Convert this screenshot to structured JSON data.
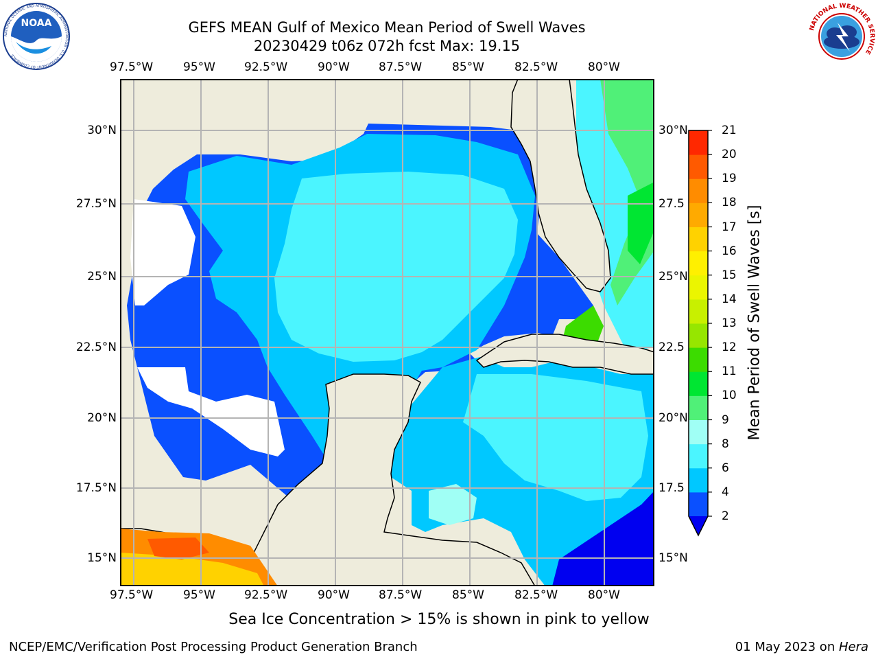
{
  "header": {
    "title_line1": "GEFS MEAN Gulf of Mexico Mean Period of Swell Waves",
    "title_line2": "20230429 t06z 072h fcst   Max: 19.15"
  },
  "logos": {
    "noaa_text": "NOAA",
    "noaa_ring_text": "NATIONAL OCEANIC AND ATMOSPHERIC ADMINISTRATION · U.S. DEPARTMENT OF COMMERCE",
    "nws_ring_text": "NATIONAL WEATHER SERVICE"
  },
  "map": {
    "lon_labels": [
      "97.5°W",
      "95°W",
      "92.5°W",
      "90°W",
      "87.5°W",
      "85°W",
      "82.5°W",
      "80°W"
    ],
    "lat_labels_left": [
      "30°N",
      "27.5°N",
      "25°N",
      "22.5°N",
      "20°N",
      "17.5°N",
      "15°N"
    ],
    "lat_labels_right": [
      "30°N",
      "27.5",
      "25°N",
      "22.5",
      "20°N",
      "17.5",
      "15°N"
    ],
    "colors": {
      "land": "#eeecdc",
      "no_data": "#ffffff",
      "grid": "#b4b4b4",
      "coast": "#000000"
    }
  },
  "colorbar": {
    "label": "Mean Period of Swell Waves [s]",
    "tick_labels": [
      "2",
      "4",
      "6",
      "8",
      "9",
      "10",
      "11",
      "12",
      "13",
      "14",
      "15",
      "16",
      "17",
      "18",
      "19",
      "20",
      "21"
    ],
    "colors": [
      "#0a50ff",
      "#00c8ff",
      "#4bf5ff",
      "#a0fff5",
      "#50f078",
      "#00e632",
      "#3cdc00",
      "#96e600",
      "#c8f000",
      "#ebf500",
      "#fff000",
      "#ffd200",
      "#ffaa00",
      "#ff8c00",
      "#ff5a00",
      "#ff2800",
      "#e60000"
    ],
    "extend_color": "#0000f0"
  },
  "note": "Sea Ice Concentration > 15% is shown in pink to yellow",
  "footer": {
    "left": "NCEP/EMC/Verification Post Processing Product Generation Branch",
    "right_prefix": "01 May 2023 on ",
    "right_host": "Hera"
  }
}
